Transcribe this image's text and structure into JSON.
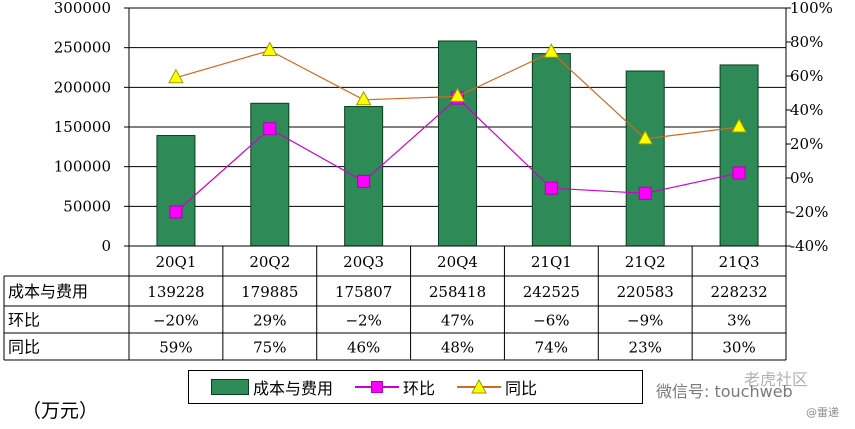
{
  "chart_data": {
    "type": "bar+line",
    "categories": [
      "20Q1",
      "20Q2",
      "20Q3",
      "20Q4",
      "21Q1",
      "21Q2",
      "21Q3"
    ],
    "left_axis": {
      "min": 0,
      "max": 300000,
      "ticks": [
        "0",
        "50000",
        "100000",
        "150000",
        "200000",
        "250000",
        "300000"
      ]
    },
    "right_axis": {
      "min": -40,
      "max": 100,
      "ticks": [
        "-40%",
        "-20%",
        "0%",
        "20%",
        "40%",
        "60%",
        "80%",
        "100%"
      ]
    },
    "series": [
      {
        "name": "成本与费用",
        "kind": "bar",
        "axis": "left",
        "color": "#2e8b57",
        "values": [
          139228,
          179885,
          175807,
          258418,
          242525,
          220583,
          228232
        ]
      },
      {
        "name": "环比",
        "kind": "line",
        "axis": "right",
        "color": "#cc00cc",
        "marker": "square",
        "marker_color": "#ff00ff",
        "values": [
          -20,
          29,
          -2,
          47,
          -6,
          -9,
          3
        ]
      },
      {
        "name": "同比",
        "kind": "line",
        "axis": "right",
        "color": "#d2691e",
        "marker": "triangle",
        "marker_color": "#ffff00",
        "values": [
          59,
          75,
          46,
          48,
          74,
          23,
          30
        ]
      }
    ],
    "table": {
      "rows": [
        {
          "label": "成本与费用",
          "cells": [
            "139228",
            "179885",
            "175807",
            "258418",
            "242525",
            "220583",
            "228232"
          ]
        },
        {
          "label": "环比",
          "cells": [
            "−20%",
            "29%",
            "−2%",
            "47%",
            "−6%",
            "−9%",
            "3%"
          ]
        },
        {
          "label": "同比",
          "cells": [
            "59%",
            "75%",
            "46%",
            "48%",
            "74%",
            "23%",
            "30%"
          ]
        }
      ]
    },
    "legend": [
      "成本与费用",
      "环比",
      "同比"
    ]
  },
  "unit_label": "（万元）",
  "watermark": "微信号: touchweb",
  "watermark_brand": "老虎社区",
  "watermark_small": "@雷递"
}
